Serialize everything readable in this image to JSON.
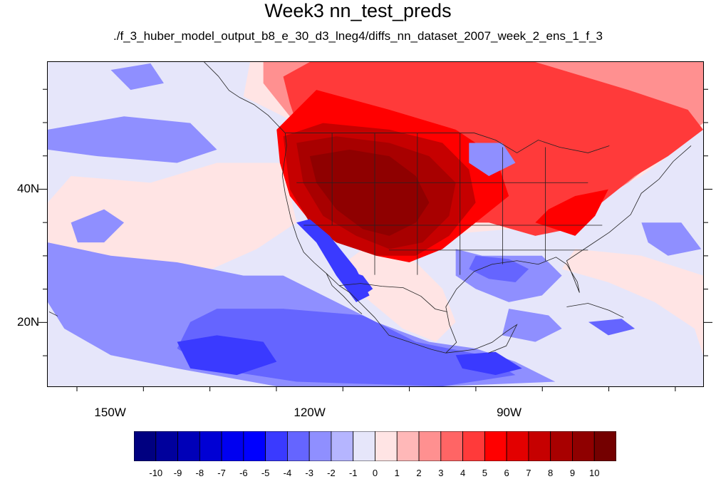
{
  "title": "Week3 nn_test_preds",
  "subtitle": "./f_3_huber_model_output_b8_e_30_d3_lneg4/diffs_nn_dataset_2007_week_2_ens_1_f_3",
  "map": {
    "projection": "cylindrical-equidistant",
    "lon_range": [
      -159.5,
      -60.7
    ],
    "lat_range": [
      10.3,
      59.2
    ],
    "background_level": -1
  },
  "lat_axis": {
    "labels": [
      {
        "value": 40,
        "text": "40N"
      },
      {
        "value": 20,
        "text": "20N"
      }
    ]
  },
  "lon_axis": {
    "labels": [
      {
        "value": -150,
        "text": "150W"
      },
      {
        "value": -120,
        "text": "120W"
      },
      {
        "value": -90,
        "text": "90W"
      }
    ]
  },
  "colorbar": {
    "colors": [
      "#000080",
      "#00009c",
      "#0000b8",
      "#0000d4",
      "#0000f0",
      "#0000ff",
      "#3a3aff",
      "#6565ff",
      "#8f8fff",
      "#b5b5ff",
      "#e6e6fa",
      "#ffe4e4",
      "#ffb8b8",
      "#ff9090",
      "#ff6565",
      "#ff3a3a",
      "#ff0000",
      "#e30000",
      "#c60000",
      "#a80000",
      "#8f0000",
      "#740000"
    ],
    "labels": [
      "-10",
      "-9",
      "-8",
      "-7",
      "-6",
      "-5",
      "-4",
      "-3",
      "-2",
      "-1",
      "0",
      "1",
      "2",
      "3",
      "4",
      "5",
      "6",
      "7",
      "8",
      "9",
      "10"
    ]
  },
  "chart_data": {
    "type": "heatmap",
    "title": "Week3 nn_test_preds",
    "subtitle": "./f_3_huber_model_output_b8_e_30_d3_lneg4/diffs_nn_dataset_2007_week_2_ens_1_f_3",
    "x_ticks": [
      "150W",
      "120W",
      "90W"
    ],
    "y_ticks": [
      "40N",
      "20N"
    ],
    "color_levels": [
      -10,
      -9,
      -8,
      -7,
      -6,
      -5,
      -4,
      -3,
      -2,
      -1,
      0,
      1,
      2,
      3,
      4,
      5,
      6,
      7,
      8,
      9,
      10
    ],
    "regions": [
      {
        "level": 0.5,
        "points": [
          [
            -146,
            22
          ],
          [
            -137,
            27
          ],
          [
            -128,
            31
          ],
          [
            -122,
            35
          ],
          [
            -124,
            44
          ],
          [
            -134,
            44
          ],
          [
            -144,
            41
          ],
          [
            -156,
            42
          ],
          [
            -159.5,
            38
          ],
          [
            -159.5,
            27
          ],
          [
            -150,
            24
          ]
        ]
      },
      {
        "level": 0.5,
        "points": [
          [
            -129,
            59.2
          ],
          [
            -60.7,
            59.2
          ],
          [
            -60.7,
            49
          ],
          [
            -70,
            42
          ],
          [
            -80,
            37
          ],
          [
            -90,
            34
          ],
          [
            -102,
            33
          ],
          [
            -111,
            35
          ],
          [
            -118,
            40
          ],
          [
            -122,
            50
          ],
          [
            -130,
            54
          ]
        ]
      },
      {
        "level": 0.5,
        "points": [
          [
            -82,
            28
          ],
          [
            -75,
            26
          ],
          [
            -68,
            23
          ],
          [
            -62,
            19
          ],
          [
            -60.7,
            15
          ],
          [
            -60.7,
            27
          ],
          [
            -70,
            30
          ],
          [
            -80,
            31
          ]
        ]
      },
      {
        "level": 0.5,
        "points": [
          [
            -116,
            28
          ],
          [
            -112,
            24
          ],
          [
            -106,
            19
          ],
          [
            -101,
            17
          ],
          [
            -98,
            20
          ],
          [
            -100,
            25
          ],
          [
            -105,
            30
          ],
          [
            -112,
            31
          ]
        ]
      },
      {
        "level": 2.5,
        "points": [
          [
            -127,
            59.2
          ],
          [
            -60.7,
            59.2
          ],
          [
            -60.7,
            50
          ],
          [
            -67,
            45
          ],
          [
            -72,
            41
          ],
          [
            -80,
            36
          ],
          [
            -92,
            35
          ],
          [
            -104,
            35
          ],
          [
            -113,
            38
          ],
          [
            -119,
            44
          ],
          [
            -123,
            51
          ],
          [
            -127,
            56
          ]
        ]
      },
      {
        "level": 4.5,
        "points": [
          [
            -124,
            57
          ],
          [
            -120,
            59.2
          ],
          [
            -86,
            59.2
          ],
          [
            -72,
            55
          ],
          [
            -63,
            52
          ],
          [
            -60.7,
            49
          ],
          [
            -66,
            45
          ],
          [
            -71,
            42
          ],
          [
            -76,
            38
          ],
          [
            -81,
            34
          ],
          [
            -86,
            33
          ],
          [
            -93,
            35
          ],
          [
            -101,
            35
          ],
          [
            -110,
            37
          ],
          [
            -117,
            41
          ],
          [
            -121,
            47
          ],
          [
            -123,
            53
          ]
        ]
      },
      {
        "level": 5.5,
        "points": [
          [
            -125,
            49
          ],
          [
            -119,
            55
          ],
          [
            -108,
            52
          ],
          [
            -98,
            49
          ],
          [
            -92,
            45
          ],
          [
            -90,
            39
          ],
          [
            -95,
            35
          ],
          [
            -100,
            31
          ],
          [
            -105,
            29
          ],
          [
            -110,
            30
          ],
          [
            -115,
            32
          ],
          [
            -119,
            34
          ],
          [
            -123,
            39
          ],
          [
            -124.5,
            44
          ]
        ]
      },
      {
        "level": 5.5,
        "points": [
          [
            -86,
            35
          ],
          [
            -80,
            33
          ],
          [
            -77,
            36
          ],
          [
            -75,
            40
          ],
          [
            -80,
            39
          ],
          [
            -84,
            37
          ]
        ]
      },
      {
        "level": 7.5,
        "points": [
          [
            -124,
            48
          ],
          [
            -118,
            50
          ],
          [
            -108,
            49
          ],
          [
            -100,
            47
          ],
          [
            -96,
            43
          ],
          [
            -95,
            38
          ],
          [
            -99,
            33
          ],
          [
            -104,
            30
          ],
          [
            -110,
            30
          ],
          [
            -116,
            32
          ],
          [
            -120,
            35
          ],
          [
            -123,
            40
          ]
        ]
      },
      {
        "level": 8.5,
        "points": [
          [
            -122,
            47
          ],
          [
            -116,
            48
          ],
          [
            -108,
            47
          ],
          [
            -102,
            45
          ],
          [
            -98,
            41
          ],
          [
            -99,
            36
          ],
          [
            -103,
            32
          ],
          [
            -108,
            31
          ],
          [
            -113,
            33
          ],
          [
            -118,
            36
          ],
          [
            -121,
            41
          ]
        ]
      },
      {
        "level": 9.5,
        "points": [
          [
            -120,
            45
          ],
          [
            -114,
            46
          ],
          [
            -108,
            45
          ],
          [
            -104,
            42
          ],
          [
            -102,
            38
          ],
          [
            -104,
            35
          ],
          [
            -108,
            33
          ],
          [
            -112,
            34
          ],
          [
            -116,
            37
          ],
          [
            -119,
            41
          ]
        ]
      },
      {
        "level": -2.5,
        "points": [
          [
            -159.5,
            49
          ],
          [
            -148,
            51
          ],
          [
            -138,
            50
          ],
          [
            -134,
            46
          ],
          [
            -140,
            44
          ],
          [
            -152,
            45
          ],
          [
            -159.5,
            46
          ]
        ]
      },
      {
        "level": -2.5,
        "points": [
          [
            -150,
            58
          ],
          [
            -144,
            59
          ],
          [
            -142,
            56
          ],
          [
            -147,
            55
          ]
        ]
      },
      {
        "level": -2.5,
        "points": [
          [
            -159.5,
            32
          ],
          [
            -150,
            30
          ],
          [
            -140,
            29
          ],
          [
            -130,
            27
          ],
          [
            -124,
            27
          ],
          [
            -118,
            24
          ],
          [
            -110,
            20
          ],
          [
            -102,
            17
          ],
          [
            -95,
            16
          ],
          [
            -89,
            14
          ],
          [
            -83,
            11
          ],
          [
            -100,
            10.3
          ],
          [
            -125,
            10.3
          ],
          [
            -140,
            13
          ],
          [
            -150,
            15
          ],
          [
            -157,
            19
          ],
          [
            -159.5,
            23
          ]
        ]
      },
      {
        "level": -3.5,
        "points": [
          [
            -134,
            22
          ],
          [
            -124,
            22
          ],
          [
            -112,
            21
          ],
          [
            -104,
            17
          ],
          [
            -94,
            15
          ],
          [
            -89,
            12
          ],
          [
            -100,
            10.3
          ],
          [
            -122,
            11
          ],
          [
            -135,
            13
          ],
          [
            -140,
            16
          ],
          [
            -138,
            20
          ]
        ]
      },
      {
        "level": -4.5,
        "points": [
          [
            -140,
            17
          ],
          [
            -134,
            18
          ],
          [
            -127,
            17
          ],
          [
            -125,
            14
          ],
          [
            -131,
            12
          ],
          [
            -138,
            13
          ]
        ]
      },
      {
        "level": -4.5,
        "points": [
          [
            -98,
            15
          ],
          [
            -92,
            15.5
          ],
          [
            -88,
            13
          ],
          [
            -92,
            12
          ],
          [
            -97,
            13
          ]
        ]
      },
      {
        "level": -2.5,
        "points": [
          [
            -98,
            31
          ],
          [
            -94,
            30
          ],
          [
            -89,
            30
          ],
          [
            -85,
            30
          ],
          [
            -82,
            27
          ],
          [
            -85,
            24
          ],
          [
            -90,
            23
          ],
          [
            -95,
            25
          ],
          [
            -98,
            27
          ]
        ]
      },
      {
        "level": -3.5,
        "points": [
          [
            -95,
            30
          ],
          [
            -90,
            29.5
          ],
          [
            -87,
            28
          ],
          [
            -89,
            26
          ],
          [
            -93,
            26.5
          ],
          [
            -96,
            28
          ]
        ]
      },
      {
        "level": -4.5,
        "points": [
          [
            -122,
            35
          ],
          [
            -119,
            32
          ],
          [
            -116,
            27
          ],
          [
            -113,
            23
          ],
          [
            -111,
            24
          ],
          [
            -113,
            28
          ],
          [
            -117,
            33
          ],
          [
            -120,
            35.5
          ]
        ]
      },
      {
        "level": -4.5,
        "points": [
          [
            -115,
            28
          ],
          [
            -112,
            27
          ],
          [
            -110.5,
            25
          ],
          [
            -112,
            24
          ],
          [
            -114,
            25.5
          ]
        ]
      },
      {
        "level": -2.5,
        "points": [
          [
            -90,
            22
          ],
          [
            -84,
            21
          ],
          [
            -82,
            19
          ],
          [
            -86,
            17
          ],
          [
            -91,
            18
          ]
        ]
      },
      {
        "level": -3.5,
        "points": [
          [
            -78,
            20
          ],
          [
            -73,
            20.5
          ],
          [
            -71,
            19
          ],
          [
            -75,
            18
          ]
        ]
      },
      {
        "level": -2.5,
        "points": [
          [
            -96,
            47
          ],
          [
            -91,
            47
          ],
          [
            -89,
            44
          ],
          [
            -93,
            42
          ],
          [
            -96,
            44
          ]
        ]
      },
      {
        "level": -2.5,
        "points": [
          [
            -70,
            35
          ],
          [
            -64,
            35
          ],
          [
            -61,
            31
          ],
          [
            -66,
            30
          ],
          [
            -69,
            32
          ]
        ]
      },
      {
        "level": -2.5,
        "points": [
          [
            -156,
            35
          ],
          [
            -151,
            37
          ],
          [
            -148,
            35
          ],
          [
            -151,
            32
          ],
          [
            -155,
            32
          ]
        ]
      }
    ]
  }
}
